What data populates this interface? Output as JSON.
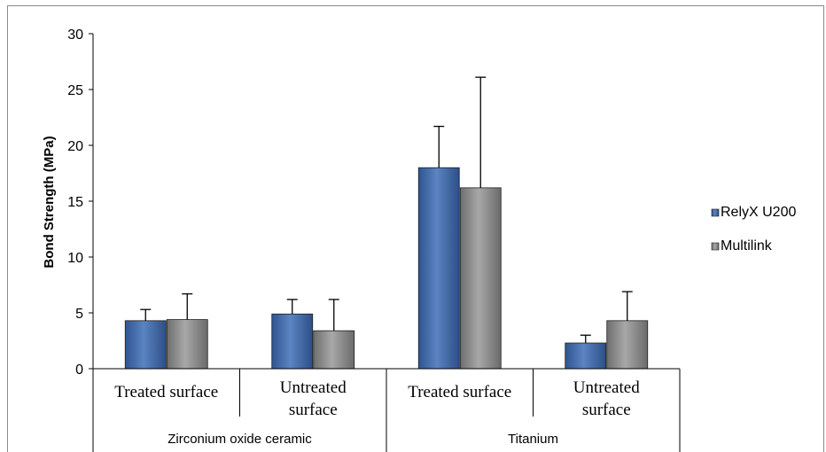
{
  "chart_data": {
    "type": "bar",
    "title": "",
    "ylabel": "Bond Strength (MPa)",
    "xlabel": "",
    "ylim": [
      0,
      30
    ],
    "yticks": [
      0,
      5,
      10,
      15,
      20,
      25,
      30
    ],
    "grid": false,
    "legend_position": "right",
    "groups": [
      {
        "label": "Zirconium oxide ceramic",
        "categories": [
          [
            "Treated surface"
          ],
          [
            "Untreated",
            "surface"
          ]
        ]
      },
      {
        "label": "Titanium",
        "categories": [
          [
            "Treated surface"
          ],
          [
            "Untreated",
            "surface"
          ]
        ]
      }
    ],
    "series": [
      {
        "name": "RelyX U200",
        "color": "#3d66a6",
        "values": [
          4.3,
          4.9,
          18.0,
          2.3
        ],
        "error": [
          1.0,
          1.3,
          3.7,
          0.7
        ]
      },
      {
        "name": "Multilink",
        "color": "#8c8c8c",
        "values": [
          4.4,
          3.4,
          16.2,
          4.3
        ],
        "error": [
          2.3,
          2.8,
          9.9,
          2.6
        ]
      }
    ]
  }
}
